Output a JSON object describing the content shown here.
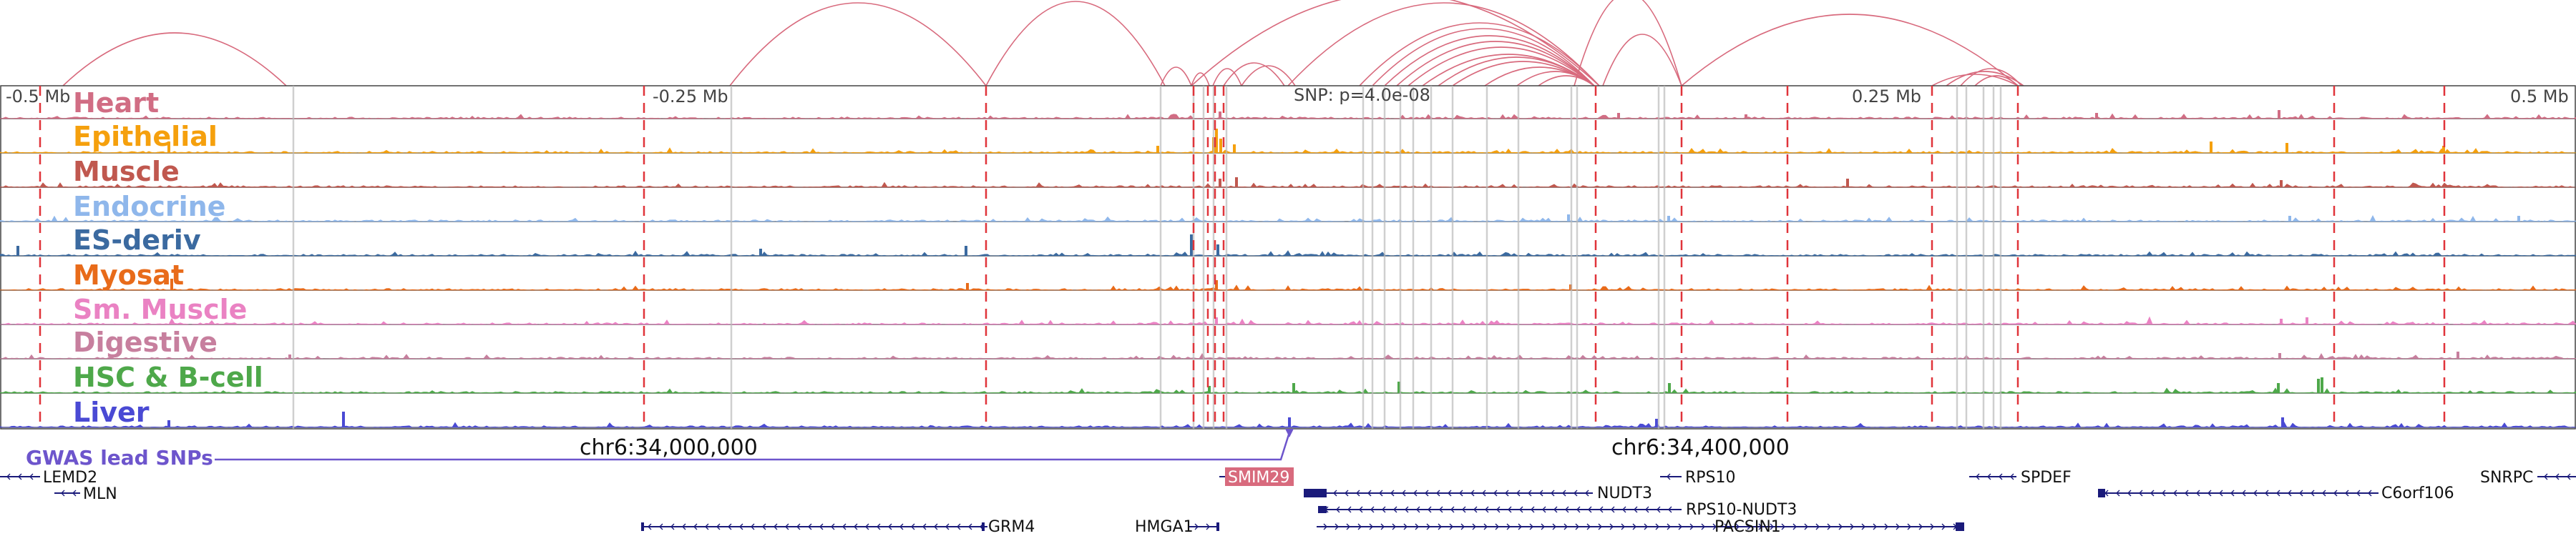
{
  "ruler": {
    "left_label": "-0.5 Mb",
    "mid_left_label": "-0.25 Mb",
    "snp_label": "SNP: p=4.0e-08",
    "mid_right_label": "0.25 Mb",
    "right_label": "0.5 Mb"
  },
  "tracks": [
    {
      "label": "Heart",
      "color": "#d16d84"
    },
    {
      "label": "Epithelial",
      "color": "#f5a00d"
    },
    {
      "label": "Muscle",
      "color": "#c0584f"
    },
    {
      "label": "Endocrine",
      "color": "#8fb7eb"
    },
    {
      "label": "ES-deriv",
      "color": "#3b6aa0"
    },
    {
      "label": "Myosat",
      "color": "#e86b1a"
    },
    {
      "label": "Sm. Muscle",
      "color": "#ea82c3"
    },
    {
      "label": "Digestive",
      "color": "#c77f9e"
    },
    {
      "label": "HSC & B-cell",
      "color": "#4ea84a"
    },
    {
      "label": "Liver",
      "color": "#4a4ad4"
    }
  ],
  "gwas": {
    "label": "GWAS lead SNPs",
    "color": "#6d55cc"
  },
  "coordinates": {
    "left": "chr6:34,000,000",
    "right": "chr6:34,400,000"
  },
  "highlight_gene": {
    "label": "SMIM29",
    "color": "#d86a7d"
  },
  "genes": [
    {
      "label": "LEMD2"
    },
    {
      "label": "MLN"
    },
    {
      "label": "GRM4"
    },
    {
      "label": "HMGA1"
    },
    {
      "label": "RPS10"
    },
    {
      "label": "NUDT3"
    },
    {
      "label": "RPS10-NUDT3"
    },
    {
      "label": "PACSIN1"
    },
    {
      "label": "SPDEF"
    },
    {
      "label": "C6orf106"
    },
    {
      "label": "SNRPC"
    }
  ],
  "colors": {
    "arc": "#d86a7d",
    "boundary": "#e0343a",
    "gene": "#1a1a7a"
  }
}
